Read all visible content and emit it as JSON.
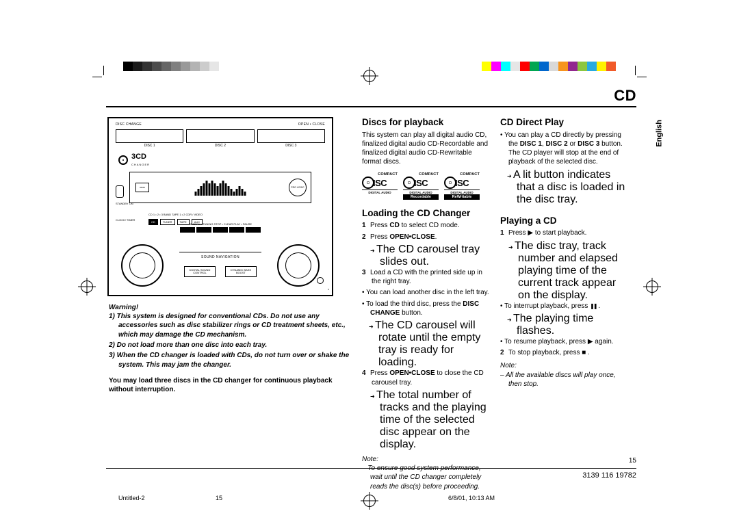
{
  "header": {
    "title": "CD",
    "language_tab": "English"
  },
  "colorbar_left": [
    "#000000",
    "#1a1a1a",
    "#333333",
    "#4d4d4d",
    "#666666",
    "#808080",
    "#999999",
    "#b3b3b3",
    "#cccccc",
    "#e6e6e6"
  ],
  "colorbar_right": [
    "#ffff00",
    "#ff00ff",
    "#00ffff",
    "#e6e6e6",
    "#ff0000",
    "#00a651",
    "#0066cc",
    "#d9d9d9",
    "#f7941d",
    "#92278f",
    "#8cc63f",
    "#27aae1",
    "#fff200",
    "#f15a29"
  ],
  "device": {
    "top_left": "DISC CHANGE",
    "top_right": "OPEN • CLOSE",
    "slots": [
      "DISC 1",
      "DISC 2",
      "DISC 3"
    ],
    "logo_text": "3CD",
    "logo_sub": "CHANGER",
    "display_prologic": "PRO LOGIC",
    "left_standby": "STANDBY ON",
    "left_clock": "CLOCK/ TIMER",
    "src_row_pre": "CD 1 • 2 • 3     BAND     TAPE 1 • 2     CDR / VIDEO",
    "src_buttons": [
      "CD",
      "TUNER",
      "TAPE",
      "AUX"
    ],
    "ctrl_labels": "SEARCH • TUNING   STOP • CLEAR  PLAY • PAUSE",
    "sound_nav": "SOUND NAVIGATION",
    "bot_btn_1a": "DIGITAL SOUND",
    "bot_btn_1b": "CONTROL",
    "bot_btn_2a": "DYNAMIC BASS",
    "bot_btn_2b": "BOOST",
    "hp": "n"
  },
  "warning": {
    "heading": "Warning!",
    "items": [
      "1) This system is designed for conventional CDs. Do not use any accessories such as disc stabilizer rings or CD treatment sheets, etc., which may damage the CD mechanism.",
      "2) Do not load more than one disc into each tray.",
      "3) When the CD changer is loaded with CDs, do not turn over or shake the system. This may jam the changer."
    ],
    "footer": "You may load three discs in the CD changer for continuous playback without interruption."
  },
  "discs_playback": {
    "heading": "Discs for playback",
    "body": "This system can play all digital audio CD, finalized digital audio CD-Recordable and finalized digital audio CD-Rewritable format discs.",
    "logos": [
      {
        "top": "COMPACT",
        "bottom": "DIGITAL AUDIO",
        "inverted": false
      },
      {
        "top": "COMPACT",
        "bottom": "Recordable",
        "inverted": true
      },
      {
        "top": "COMPACT",
        "bottom": "ReWritable",
        "inverted": true
      }
    ],
    "logo_mid_da": "DIGITAL AUDIO"
  },
  "loading": {
    "heading": "Loading the CD Changer",
    "s1_a": "Press ",
    "s1_b": "CD",
    "s1_c": " to select CD mode.",
    "s2_a": "Press ",
    "s2_b": "OPEN•CLOSE",
    "s2_c": ".",
    "s2_arrow": "The CD carousel tray slides out.",
    "s3": "Load a CD with the printed side up in the right tray.",
    "bul1": "You can load another disc in the left tray.",
    "bul2_a": "To load the third disc, press the ",
    "bul2_b": "DISC CHANGE",
    "bul2_c": " button.",
    "bul2_arrow": "The CD carousel will rotate until the empty tray is ready for loading.",
    "s4_a": "Press ",
    "s4_b": "OPEN•CLOSE",
    "s4_c": " to close the CD carousel tray.",
    "s4_arrow": "The total number of tracks and the playing time of the selected disc appear on the display.",
    "note_h": "Note:",
    "note": "–  To ensure good system performance, wait until the CD changer completely reads the disc(s) before proceeding."
  },
  "direct": {
    "heading": "CD Direct Play",
    "b1_a": "You can play a CD directly by pressing the ",
    "b1_b": "DISC 1",
    "b1_c": ", ",
    "b1_d": "DISC 2",
    "b1_e": " or ",
    "b1_f": "DISC 3",
    "b1_g": " button. The CD player will stop at the end of playback of the selected disc.",
    "b1_arrow": "A lit button indicates that a disc is loaded in the disc tray."
  },
  "playing": {
    "heading": "Playing a CD",
    "s1_a": "Press ",
    "s1_sym": "▶",
    "s1_b": " to start playback.",
    "s1_arrow": "The disc tray, track number and elapsed playing time of the current track appear on the display.",
    "bul1_a": "To interrupt playback, press ",
    "bul1_sym": "❚❚",
    "bul1_b": " .",
    "bul1_arrow": "The playing time flashes.",
    "bul2_a": "To resume playback, press ",
    "bul2_sym": "▶",
    "bul2_b": " again.",
    "s2_a": "To stop playback, press ",
    "s2_sym": "■",
    "s2_b": " .",
    "note_h": "Note:",
    "note": "–  All the available discs will play once, then stop."
  },
  "footer": {
    "page_num": "15",
    "pub_num": "3139 116 19782",
    "meta_file": "Untitled-2",
    "meta_page": "15",
    "meta_time": "6/8/01, 10:13 AM"
  }
}
